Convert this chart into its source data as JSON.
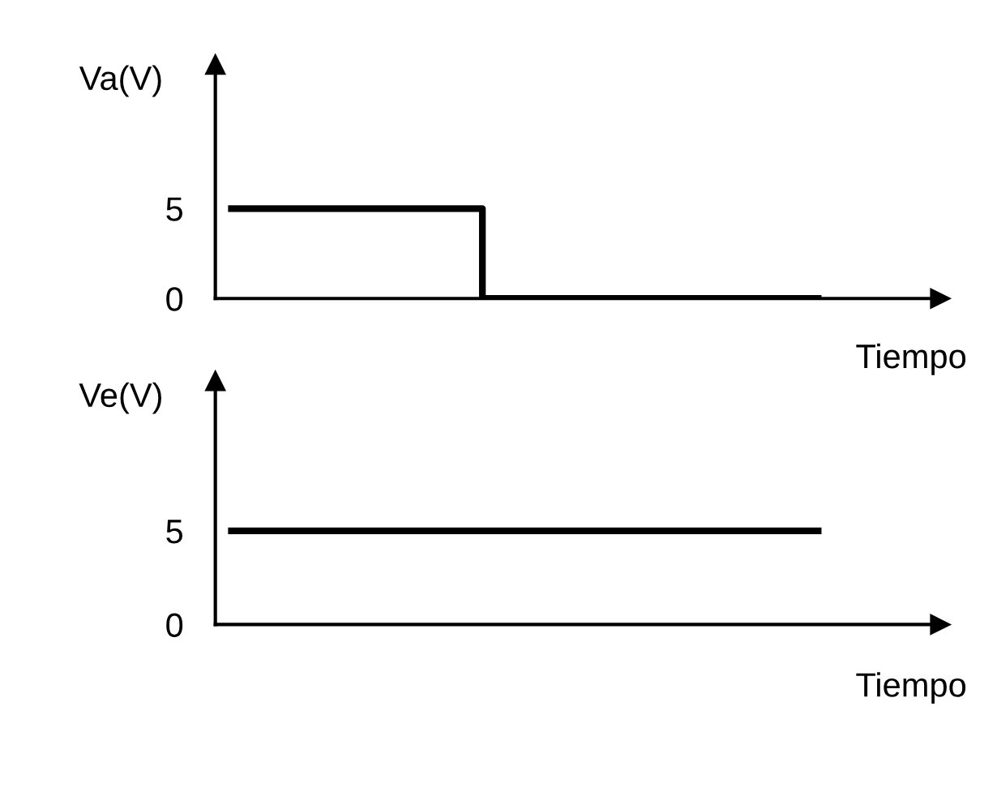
{
  "chart_data": [
    {
      "type": "step",
      "ylabel": "Va(V)",
      "xlabel": "Tiempo",
      "categories": [
        null,
        null,
        null,
        null,
        null,
        null,
        null,
        null
      ],
      "values": [
        5,
        5,
        5,
        0,
        0,
        0,
        0,
        0
      ],
      "color": "#000000",
      "ylim": [
        0,
        13
      ],
      "yticks": [
        0,
        5
      ],
      "grid": false,
      "legend": false,
      "tick_labels": "y"
    },
    {
      "type": "step",
      "ylabel": "Ve(V)",
      "xlabel": "Tiempo",
      "categories": [
        null,
        null,
        null,
        null,
        null,
        null,
        null,
        null
      ],
      "values": [
        5,
        5,
        5,
        5,
        5,
        5,
        5,
        5
      ],
      "color": "#000000",
      "ylim": [
        0,
        13
      ],
      "yticks": [
        0,
        5
      ],
      "grid": false,
      "legend": false,
      "tick_labels": "y"
    }
  ]
}
